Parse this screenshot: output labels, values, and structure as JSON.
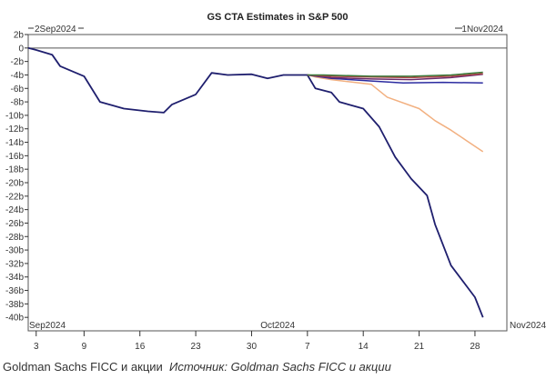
{
  "chart_data": {
    "type": "line",
    "title": "GS CTA Estimates in S&P 500",
    "start_label": "2Sep2024",
    "end_label": "1Nov2024",
    "xlim": [
      "2024-09-02",
      "2024-11-01"
    ],
    "ylim": [
      -42,
      2
    ],
    "yticks": [
      2,
      0,
      -2,
      -4,
      -6,
      -8,
      -10,
      -12,
      -14,
      -16,
      -18,
      -20,
      -22,
      -24,
      -26,
      -28,
      -30,
      -32,
      -34,
      -36,
      -38,
      -40
    ],
    "ytick_suffix": "b",
    "xticks": [
      {
        "date": "2024-09-03",
        "label": "3"
      },
      {
        "date": "2024-09-09",
        "label": "9"
      },
      {
        "date": "2024-09-16",
        "label": "16"
      },
      {
        "date": "2024-09-23",
        "label": "23"
      },
      {
        "date": "2024-09-30",
        "label": "30"
      },
      {
        "date": "2024-10-07",
        "label": "7"
      },
      {
        "date": "2024-10-14",
        "label": "14"
      },
      {
        "date": "2024-10-21",
        "label": "21"
      },
      {
        "date": "2024-10-28",
        "label": "28"
      }
    ],
    "month_labels": [
      {
        "date": "2024-09-01",
        "label": "Sep2024"
      },
      {
        "date": "2024-10-01",
        "label": "Oct2024"
      },
      {
        "date": "2024-11-01",
        "label": "Nov2024"
      }
    ],
    "grid": false,
    "series": [
      {
        "color": "#1f1f6e",
        "points": [
          [
            "2024-09-02",
            0
          ],
          [
            "2024-09-03",
            -0.3
          ],
          [
            "2024-09-05",
            -1
          ],
          [
            "2024-09-06",
            -2.7
          ],
          [
            "2024-09-09",
            -4.2
          ],
          [
            "2024-09-11",
            -8
          ],
          [
            "2024-09-14",
            -9
          ],
          [
            "2024-09-17",
            -9.4
          ],
          [
            "2024-09-19",
            -9.6
          ],
          [
            "2024-09-20",
            -8.4
          ],
          [
            "2024-09-23",
            -6.9
          ],
          [
            "2024-09-25",
            -3.7
          ],
          [
            "2024-09-27",
            -4
          ],
          [
            "2024-09-30",
            -3.9
          ],
          [
            "2024-10-02",
            -4.5
          ],
          [
            "2024-10-04",
            -4
          ],
          [
            "2024-10-07",
            -4
          ],
          [
            "2024-10-08",
            -6
          ],
          [
            "2024-10-10",
            -6.6
          ],
          [
            "2024-10-11",
            -8
          ],
          [
            "2024-10-14",
            -9
          ],
          [
            "2024-10-16",
            -11.7
          ],
          [
            "2024-10-18",
            -16.2
          ],
          [
            "2024-10-20",
            -19.4
          ],
          [
            "2024-10-22",
            -21.9
          ],
          [
            "2024-10-23",
            -26.2
          ],
          [
            "2024-10-25",
            -32.3
          ],
          [
            "2024-10-28",
            -37
          ],
          [
            "2024-10-29",
            -40
          ]
        ]
      },
      {
        "color": "#f2b080",
        "points": [
          [
            "2024-10-07",
            -4
          ],
          [
            "2024-10-08",
            -4.3
          ],
          [
            "2024-10-10",
            -4.7
          ],
          [
            "2024-10-15",
            -5.4
          ],
          [
            "2024-10-17",
            -7.3
          ],
          [
            "2024-10-21",
            -9
          ],
          [
            "2024-10-23",
            -10.8
          ],
          [
            "2024-10-25",
            -12.2
          ],
          [
            "2024-10-27",
            -13.8
          ],
          [
            "2024-10-29",
            -15.4
          ]
        ]
      },
      {
        "color": "#2b2ba0",
        "points": [
          [
            "2024-10-07",
            -4
          ],
          [
            "2024-10-10",
            -4.5
          ],
          [
            "2024-10-15",
            -4.9
          ],
          [
            "2024-10-19",
            -5.2
          ],
          [
            "2024-10-24",
            -5.1
          ],
          [
            "2024-10-29",
            -5.2
          ]
        ]
      },
      {
        "color": "#6a2a6a",
        "points": [
          [
            "2024-10-07",
            -4
          ],
          [
            "2024-10-10",
            -4.4
          ],
          [
            "2024-10-15",
            -4.6
          ],
          [
            "2024-10-20",
            -4.7
          ],
          [
            "2024-10-25",
            -4.4
          ],
          [
            "2024-10-29",
            -3.9
          ]
        ]
      },
      {
        "color": "#b04848",
        "points": [
          [
            "2024-10-07",
            -4
          ],
          [
            "2024-10-10",
            -4.2
          ],
          [
            "2024-10-15",
            -4.3
          ],
          [
            "2024-10-20",
            -4.4
          ],
          [
            "2024-10-25",
            -4.2
          ],
          [
            "2024-10-29",
            -3.8
          ]
        ]
      },
      {
        "color": "#3a7a3a",
        "points": [
          [
            "2024-10-07",
            -4
          ],
          [
            "2024-10-09",
            -4
          ],
          [
            "2024-10-15",
            -4.2
          ],
          [
            "2024-10-20",
            -4.2
          ],
          [
            "2024-10-25",
            -4
          ],
          [
            "2024-10-29",
            -3.6
          ]
        ]
      }
    ]
  },
  "caption": {
    "text": "Goldman Sachs FICC и акции",
    "source": "Источник: Goldman Sachs FICC и акции"
  }
}
